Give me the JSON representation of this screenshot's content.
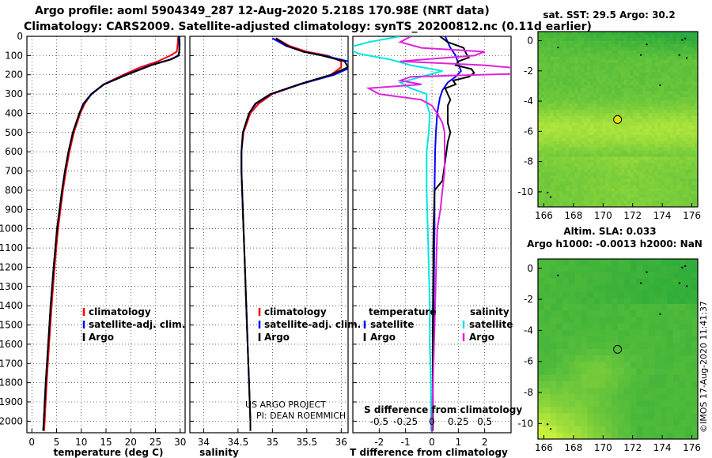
{
  "header": {
    "title_line1": "Argo profile: aoml 5904349_287 12-Aug-2020 5.218S 170.98E (NRT data)",
    "title_line2": "Climatology: CARS2009. Satellite-adjusted climatology: synTS_20200812.nc (0.11d earlier)"
  },
  "credits": {
    "line1": "US ARGO PROJECT",
    "line2": "PI: DEAN ROEMMICH"
  },
  "timestamp": "©IMOS 17-Aug-2020 11:41:37",
  "colors": {
    "climatology": "#ff0000",
    "satellite": "#0000ff",
    "argo": "#000000",
    "satellite_salinity": "#00e5e5",
    "argo_salinity": "#e020e0",
    "map_dark": "#2aaa3a",
    "map_light": "#c8f03c"
  },
  "chart_data": [
    {
      "id": "temperature",
      "type": "line",
      "xlabel": "temperature (deg C)",
      "ylabel": "depth (m)",
      "xlim": [
        -1,
        31
      ],
      "ylim": [
        2060,
        0
      ],
      "xticks": [
        0,
        5,
        10,
        15,
        20,
        25,
        30
      ],
      "yticks": [
        0,
        100,
        200,
        300,
        400,
        500,
        600,
        700,
        800,
        900,
        1000,
        1100,
        1200,
        1300,
        1400,
        1500,
        1600,
        1700,
        1800,
        1900,
        2000
      ],
      "legend": [
        "climatology",
        "satellite-adj. clim.",
        "Argo"
      ],
      "series": [
        {
          "name": "climatology",
          "color": "#ff0000",
          "depth": [
            0,
            40,
            80,
            100,
            130,
            160,
            200,
            250,
            300,
            350,
            400,
            500,
            600,
            700,
            800,
            900,
            1000,
            1200,
            1400,
            1600,
            1800,
            2000,
            2050
          ],
          "values": [
            29.6,
            29.5,
            29.3,
            28.0,
            25.5,
            22.0,
            18.5,
            14.5,
            12.0,
            10.7,
            9.8,
            8.5,
            7.6,
            6.9,
            6.3,
            5.8,
            5.3,
            4.6,
            4.0,
            3.5,
            3.0,
            2.6,
            2.5
          ]
        },
        {
          "name": "satellite-adj. clim.",
          "color": "#0000ff",
          "depth": [
            0,
            40,
            80,
            100,
            120,
            150,
            200,
            250,
            300,
            350,
            400,
            500,
            600,
            700,
            800,
            900,
            1000,
            1200,
            1400,
            1600,
            1800,
            2000,
            2050
          ],
          "values": [
            29.7,
            29.8,
            29.8,
            29.6,
            28.0,
            24.0,
            19.0,
            14.5,
            12.0,
            10.4,
            9.6,
            8.3,
            7.4,
            6.7,
            6.1,
            5.6,
            5.1,
            4.4,
            3.8,
            3.3,
            2.8,
            2.4,
            2.3
          ]
        },
        {
          "name": "Argo",
          "color": "#000000",
          "depth": [
            0,
            40,
            80,
            100,
            120,
            150,
            200,
            250,
            300,
            350,
            400,
            500,
            600,
            700,
            800,
            900,
            1000,
            1200,
            1400,
            1600,
            1800,
            2000,
            2050
          ],
          "values": [
            29.8,
            29.9,
            29.8,
            29.7,
            28.2,
            24.2,
            19.2,
            14.6,
            12.1,
            10.5,
            9.6,
            8.3,
            7.4,
            6.7,
            6.1,
            5.6,
            5.1,
            4.4,
            3.8,
            3.3,
            2.8,
            2.4,
            2.3
          ]
        }
      ]
    },
    {
      "id": "salinity",
      "type": "line",
      "xlabel": "salinity",
      "xlim": [
        33.8,
        36.1
      ],
      "ylim": [
        2060,
        0
      ],
      "xticks": [
        34,
        34.5,
        35,
        35.5,
        36
      ],
      "legend": [
        "climatology",
        "satellite-adj. clim.",
        "Argo"
      ],
      "series": [
        {
          "name": "climatology",
          "color": "#ff0000",
          "depth": [
            10,
            50,
            80,
            100,
            130,
            160,
            200,
            250,
            300,
            350,
            400,
            500,
            600,
            700,
            800,
            1000,
            1200,
            1400,
            1600,
            1800,
            2000,
            2050
          ],
          "values": [
            35.05,
            35.25,
            35.5,
            35.8,
            36.0,
            36.0,
            35.85,
            35.4,
            35.0,
            34.8,
            34.68,
            34.58,
            34.55,
            34.55,
            34.56,
            34.58,
            34.6,
            34.62,
            34.64,
            34.66,
            34.68,
            34.68
          ]
        },
        {
          "name": "satellite-adj. clim.",
          "color": "#0000ff",
          "depth": [
            10,
            50,
            80,
            100,
            130,
            160,
            200,
            250,
            300,
            350,
            400,
            500,
            600,
            700,
            800,
            1000,
            1200,
            1400,
            1600,
            1800,
            2000,
            2050
          ],
          "values": [
            35.0,
            35.2,
            35.45,
            35.75,
            36.1,
            36.15,
            35.9,
            35.4,
            34.98,
            34.76,
            34.66,
            34.57,
            34.55,
            34.55,
            34.56,
            34.58,
            34.6,
            34.62,
            34.64,
            34.66,
            34.68,
            34.68
          ]
        },
        {
          "name": "Argo",
          "color": "#000000",
          "depth": [
            10,
            50,
            80,
            100,
            130,
            160,
            200,
            250,
            300,
            350,
            400,
            500,
            600,
            700,
            800,
            1000,
            1200,
            1400,
            1600,
            1800,
            2000,
            2050
          ],
          "values": [
            35.05,
            35.22,
            35.45,
            35.72,
            36.05,
            36.1,
            35.85,
            35.38,
            34.97,
            34.75,
            34.66,
            34.57,
            34.55,
            34.55,
            34.56,
            34.58,
            34.6,
            34.62,
            34.64,
            34.66,
            34.68,
            34.68
          ]
        }
      ]
    },
    {
      "id": "difference",
      "type": "line",
      "xlabel": "T difference from climatology",
      "x2label": "S difference from climatology",
      "xlim": [
        -3,
        3
      ],
      "ylim": [
        2060,
        0
      ],
      "xticks": [
        -2,
        -1,
        0,
        1,
        2
      ],
      "x2ticks": [
        "-0.5",
        "-0.25",
        "0",
        "0.25",
        "0.5"
      ],
      "x2tick_positions_T": [
        -2,
        -1,
        0,
        1,
        2
      ],
      "legend_temperature_title": "temperature",
      "legend_salinity_title": "salinity",
      "legend_temperature": [
        "satellite",
        "Argo"
      ],
      "legend_salinity": [
        "satellite",
        "Argo"
      ],
      "series": [
        {
          "name": "T satellite",
          "color": "#0000ff",
          "depth": [
            0,
            60,
            100,
            140,
            180,
            210,
            240,
            280,
            320,
            360,
            400,
            500,
            600,
            800,
            1000,
            1200,
            1400,
            1600,
            1800,
            2000,
            2050
          ],
          "values": [
            0.5,
            0.7,
            0.9,
            1.0,
            1.1,
            0.9,
            0.6,
            0.4,
            0.3,
            0.25,
            0.2,
            0.15,
            0.12,
            0.1,
            0.1,
            0.08,
            0.06,
            0.05,
            0.04,
            0.03,
            0.03
          ]
        },
        {
          "name": "T Argo",
          "color": "#000000",
          "depth": [
            0,
            30,
            60,
            90,
            110,
            130,
            150,
            170,
            190,
            210,
            230,
            250,
            270,
            300,
            330,
            360,
            400,
            450,
            500,
            550,
            600,
            650,
            700,
            750,
            800,
            900,
            1000,
            1100,
            1200,
            1400,
            1600,
            1800,
            2000,
            2050
          ],
          "values": [
            0.3,
            0.6,
            1.2,
            1.3,
            1.4,
            1.0,
            0.9,
            1.5,
            1.6,
            1.4,
            0.8,
            0.9,
            0.5,
            0.6,
            0.7,
            0.6,
            0.6,
            0.6,
            0.7,
            0.6,
            0.55,
            0.5,
            0.45,
            0.4,
            0.1,
            0.08,
            0.06,
            0.05,
            0.05,
            0.04,
            0.03,
            0.03,
            0.02,
            0.02
          ]
        },
        {
          "name": "S satellite",
          "color": "#00e5e5",
          "depth": [
            0,
            30,
            60,
            90,
            120,
            150,
            180,
            210,
            240,
            270,
            300,
            350,
            400,
            500,
            600,
            800,
            1000,
            1200,
            1400,
            1600,
            1800,
            2000,
            2050
          ],
          "values": [
            -0.3,
            -0.6,
            -0.8,
            -0.7,
            -0.4,
            -0.2,
            0.1,
            -0.1,
            -0.3,
            -0.2,
            -0.05,
            -0.05,
            -0.02,
            -0.03,
            -0.05,
            -0.05,
            -0.04,
            -0.03,
            -0.02,
            -0.02,
            -0.01,
            -0.01,
            -0.01
          ]
        },
        {
          "name": "S Argo",
          "color": "#e020e0",
          "depth": [
            0,
            30,
            60,
            80,
            100,
            130,
            150,
            170,
            190,
            210,
            230,
            250,
            270,
            300,
            330,
            360,
            400,
            450,
            500,
            600,
            700,
            800,
            900,
            1000,
            1200,
            1400,
            1600,
            1800,
            2000,
            2050
          ],
          "values": [
            -0.2,
            -0.3,
            -0.1,
            0.5,
            0.4,
            -0.3,
            0.5,
            0.9,
            1.1,
            -0.2,
            -0.3,
            -0.1,
            -0.6,
            -0.5,
            -0.1,
            0.0,
            0.05,
            0.1,
            0.12,
            0.12,
            0.12,
            0.1,
            0.08,
            0.05,
            0.04,
            0.03,
            0.02,
            0.01,
            0.0,
            0.0
          ]
        }
      ]
    },
    {
      "id": "sst_map",
      "type": "heatmap",
      "title": "sat. SST: 29.5 Argo: 30.2",
      "xticks": [
        166,
        168,
        170,
        172,
        174,
        176
      ],
      "yticks": [
        0,
        -2,
        -4,
        -6,
        -8,
        -10
      ],
      "xlim": [
        165.6,
        176.4
      ],
      "ylim": [
        -11.0,
        0.6
      ],
      "marker": {
        "lon": 170.98,
        "lat": -5.218
      },
      "fill_color": "#e8e000"
    },
    {
      "id": "sla_map",
      "type": "heatmap",
      "title1": "Altim. SLA: 0.033",
      "title2": "Argo h1000: -0.0013 h2000: NaN",
      "xticks": [
        166,
        168,
        170,
        172,
        174,
        176
      ],
      "yticks": [
        0,
        -2,
        -4,
        -6,
        -8,
        -10
      ],
      "xlim": [
        165.6,
        176.4
      ],
      "ylim": [
        -11.0,
        0.6
      ],
      "marker": {
        "lon": 170.98,
        "lat": -5.218
      },
      "fill_color": "none"
    }
  ]
}
